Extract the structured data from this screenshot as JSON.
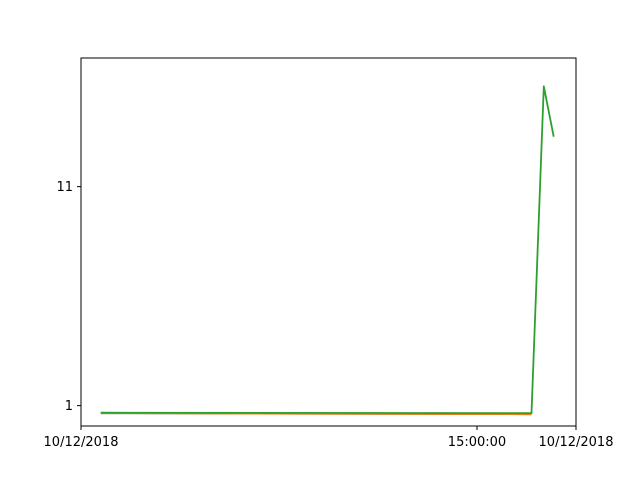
{
  "chart_data": {
    "type": "line",
    "title": "",
    "xlabel": "",
    "ylabel": "",
    "grid": false,
    "legend": "none",
    "y_scale": "log",
    "x_start_label": "10/12/2018",
    "x_end_label": "10/12/2018",
    "x_ticks": [
      {
        "label": "10/12/2018",
        "frac": 0.0
      },
      {
        "label": "15:00:00",
        "frac": 0.8
      },
      {
        "label": "10/12/2018",
        "frac": 1.0
      }
    ],
    "y_ticks": [
      {
        "label": "1",
        "value": 1
      },
      {
        "label": "11",
        "value": 11
      }
    ],
    "ylim": [
      0.8,
      45
    ],
    "series": [
      {
        "color": "#1f77b4",
        "points": [
          [
            0.04,
            0.92
          ],
          [
            0.91,
            0.91
          ]
        ]
      },
      {
        "color": "#ff7f0e",
        "points": [
          [
            0.04,
            0.92
          ],
          [
            0.91,
            0.91
          ]
        ]
      },
      {
        "color": "#2ca02c",
        "points": [
          [
            0.04,
            0.925
          ],
          [
            0.91,
            0.92
          ],
          [
            0.935,
            33
          ],
          [
            0.955,
            19
          ]
        ]
      }
    ]
  }
}
